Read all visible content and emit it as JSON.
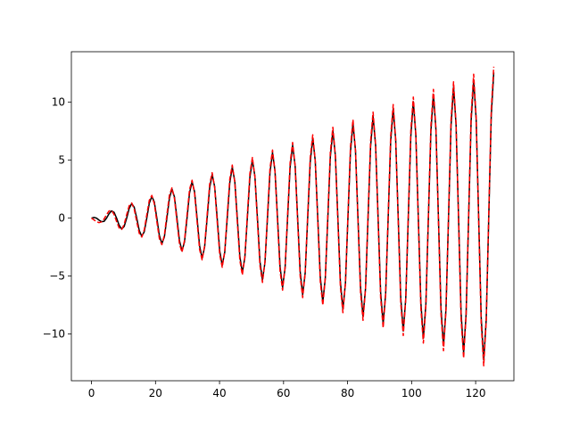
{
  "chart_data": {
    "type": "line",
    "x": [
      0,
      0.79,
      1.57,
      2.36,
      3.14,
      3.93,
      4.71,
      5.5,
      6.28,
      7.07,
      7.85,
      8.64,
      9.42,
      10.21,
      11.0,
      11.78,
      12.57,
      13.35,
      14.14,
      14.92,
      15.71,
      16.49,
      17.28,
      18.06,
      18.85,
      19.63,
      20.42,
      21.21,
      21.99,
      22.78,
      23.56,
      24.35,
      25.13,
      25.92,
      26.7,
      27.49,
      28.27,
      29.06,
      29.85,
      30.63,
      31.42,
      32.2,
      32.99,
      33.77,
      34.56,
      35.34,
      36.13,
      36.91,
      37.7,
      38.48,
      39.27,
      40.06,
      40.84,
      41.63,
      42.41,
      43.2,
      43.98,
      44.77,
      45.55,
      46.34,
      47.12,
      47.91,
      48.69,
      49.48,
      50.27,
      51.05,
      51.84,
      52.62,
      53.41,
      54.19,
      54.98,
      55.76,
      56.55,
      57.33,
      58.12,
      58.9,
      59.69,
      60.48,
      61.26,
      62.05,
      62.83,
      63.62,
      64.4,
      65.19,
      65.97,
      66.76,
      67.54,
      68.33,
      69.12,
      69.9,
      70.69,
      71.47,
      72.26,
      73.04,
      73.83,
      74.61,
      75.4,
      76.18,
      76.97,
      77.75,
      78.54,
      79.33,
      80.11,
      80.9,
      81.68,
      82.47,
      83.25,
      84.04,
      84.82,
      85.61,
      86.39,
      87.18,
      87.96,
      88.75,
      89.54,
      90.32,
      91.11,
      91.89,
      92.68,
      93.46,
      94.25,
      95.03,
      95.82,
      96.6,
      97.39,
      98.17,
      98.96,
      99.75,
      100.53,
      101.32,
      102.1,
      102.89,
      103.67,
      104.46,
      105.24,
      106.03,
      106.81,
      107.6,
      108.38,
      109.17,
      109.96,
      110.74,
      111.53,
      112.31,
      113.1,
      113.88,
      114.67,
      115.45,
      116.24,
      117.02,
      117.81,
      118.59,
      119.38,
      120.17,
      120.95,
      121.74,
      122.52,
      123.31,
      124.09,
      124.88,
      125.66
    ],
    "series": [
      {
        "color": "#000000",
        "dash": false,
        "values": [
          0,
          0.06,
          0,
          -0.17,
          -0.31,
          -0.28,
          0,
          0.39,
          0.63,
          0.5,
          0,
          -0.61,
          -0.94,
          -0.72,
          0,
          0.83,
          1.26,
          0.94,
          0,
          -1.06,
          -1.57,
          -1.17,
          0,
          1.28,
          1.88,
          1.39,
          0,
          -1.5,
          -2.2,
          -1.61,
          0,
          1.72,
          2.51,
          1.83,
          0,
          -1.94,
          -2.83,
          -2.05,
          0,
          2.17,
          3.14,
          2.28,
          0,
          -2.39,
          -3.46,
          -2.5,
          0,
          2.61,
          3.77,
          2.72,
          0,
          -2.83,
          -4.08,
          -2.94,
          0,
          3.05,
          4.4,
          3.17,
          0,
          -3.28,
          -4.71,
          -3.39,
          0,
          3.5,
          5.03,
          3.61,
          0,
          -3.72,
          -5.34,
          -3.83,
          0,
          3.94,
          5.65,
          4.05,
          0,
          -4.17,
          -5.97,
          -4.28,
          0,
          4.39,
          6.28,
          4.5,
          0,
          -4.61,
          -6.6,
          -4.72,
          0,
          4.83,
          6.91,
          4.94,
          0,
          -5.05,
          -7.23,
          -5.16,
          0,
          5.28,
          7.54,
          5.39,
          0,
          -5.5,
          -7.85,
          -5.61,
          0,
          5.72,
          8.17,
          5.83,
          0,
          -5.94,
          -8.48,
          -6.05,
          0,
          6.16,
          8.8,
          6.28,
          0,
          -6.39,
          -9.11,
          -6.5,
          0,
          6.61,
          9.42,
          6.72,
          0,
          -6.83,
          -9.74,
          -6.94,
          0,
          7.05,
          10.05,
          7.16,
          0,
          -7.28,
          -10.37,
          -7.39,
          0,
          7.5,
          10.68,
          7.61,
          0,
          -7.72,
          -11.0,
          -7.83,
          0,
          7.94,
          11.31,
          8.05,
          0,
          -8.16,
          -11.62,
          -8.27,
          0,
          8.39,
          11.94,
          8.5,
          0,
          -8.61,
          -12.25,
          -8.72,
          0,
          8.83,
          12.57
        ]
      },
      {
        "color": "#ff0000",
        "dash": true,
        "values": [
          0,
          -0.15,
          -0.3,
          -0.39,
          -0.32,
          -0.08,
          0.3,
          0.62,
          0.66,
          0.31,
          -0.3,
          -0.84,
          -0.98,
          -0.54,
          0.3,
          1.07,
          1.31,
          0.77,
          -0.3,
          -1.31,
          -1.63,
          -1.01,
          0.3,
          1.54,
          1.96,
          1.24,
          -0.3,
          -1.77,
          -2.29,
          -1.46,
          0.3,
          2.0,
          2.61,
          1.69,
          -0.3,
          -2.23,
          -2.94,
          -1.92,
          0.3,
          2.47,
          3.27,
          2.16,
          -0.3,
          -2.7,
          -3.6,
          -2.39,
          0.3,
          2.92,
          3.92,
          2.62,
          -0.3,
          -3.15,
          -4.24,
          -2.85,
          0.3,
          3.38,
          4.58,
          3.09,
          -0.3,
          -3.62,
          -4.9,
          -3.32,
          0.3,
          3.85,
          5.23,
          3.54,
          -0.3,
          -4.08,
          -5.55,
          -3.77,
          0.3,
          4.31,
          5.88,
          4.0,
          -0.3,
          -4.55,
          -6.21,
          -4.24,
          0.3,
          4.78,
          6.53,
          4.47,
          -0.3,
          -5.0,
          -6.86,
          -4.7,
          0.3,
          5.23,
          7.19,
          4.93,
          -0.3,
          -5.46,
          -7.52,
          -5.16,
          0.3,
          5.7,
          7.84,
          5.4,
          -0.3,
          -5.93,
          -8.16,
          -5.62,
          0.3,
          6.16,
          8.5,
          5.85,
          -0.3,
          -6.39,
          -8.82,
          -6.08,
          0.3,
          6.62,
          9.15,
          6.32,
          -0.3,
          -6.86,
          -9.47,
          -6.55,
          0.3,
          7.08,
          9.8,
          6.78,
          -0.3,
          -7.31,
          -10.13,
          -7.01,
          0.3,
          7.54,
          10.45,
          7.24,
          -0.3,
          -7.78,
          -10.78,
          -7.48,
          0.3,
          8.01,
          11.11,
          7.7,
          -0.3,
          -8.24,
          -11.44,
          -7.93,
          0.3,
          8.47,
          11.76,
          8.16,
          -0.3,
          -8.7,
          -12.08,
          -8.39,
          0.3,
          8.94,
          12.42,
          8.63,
          -0.3,
          -9.16,
          -12.74,
          -8.86,
          0.3,
          9.39,
          13.07
        ]
      }
    ],
    "xlim": [
      -6.28,
      131.95
    ],
    "ylim": [
      -14.03,
      14.36
    ],
    "xticks": [
      0,
      20,
      40,
      60,
      80,
      100,
      120
    ],
    "yticks": [
      {
        "value": -10,
        "label": "−10"
      },
      {
        "value": -5,
        "label": "−5"
      },
      0,
      5,
      10
    ],
    "grid": false
  }
}
